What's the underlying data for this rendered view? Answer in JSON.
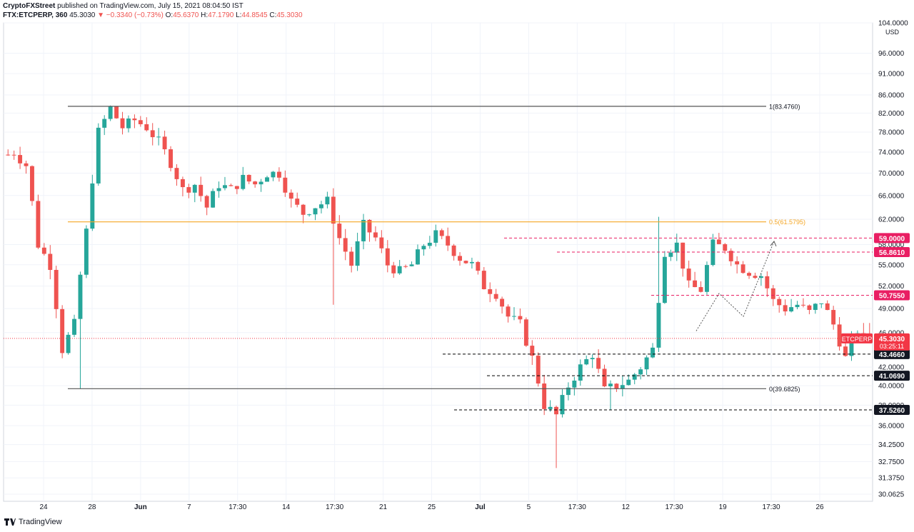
{
  "header": {
    "publisher": "CryptoFXStreet",
    "published_text": "published on TradingView.com, July 15, 2021 08:04:50 IST",
    "symbol": "FTX:ETCPERP, 360",
    "last": "45.3030",
    "change": "▼ −0.3340 (−0.73%)",
    "open_label": "O:",
    "open": "45.6370",
    "high_label": "H:",
    "high": "47.1790",
    "low_label": "L:",
    "low": "44.8545",
    "close_label": "C:",
    "close": "45.3030"
  },
  "footer": {
    "brand": "TradingView"
  },
  "colors": {
    "up": "#26a69a",
    "down": "#ef5350",
    "fib_mid": "#f5a623",
    "fib_line": "#555555",
    "resistance": "#e91e63",
    "support": "#000000",
    "current": "#f23645"
  },
  "chart_data": {
    "type": "candlestick",
    "symbol": "ETCPERP",
    "y_unit_label": "USD",
    "y_scale": "log",
    "ylim": [
      29.5,
      104.0
    ],
    "y_ticks": [
      "104.0000",
      "96.0000",
      "91.0000",
      "86.0000",
      "82.0000",
      "78.0000",
      "74.0000",
      "70.0000",
      "66.0000",
      "62.0000",
      "58.0000",
      "55.0000",
      "52.0000",
      "49.0000",
      "46.0000",
      "42.0000",
      "40.0000",
      "38.0000",
      "36.0000",
      "34.2500",
      "32.7500",
      "31.3750",
      "30.0625"
    ],
    "x_ticks": [
      "24",
      "28",
      "Jun",
      "7",
      "17:30",
      "14",
      "17:30",
      "21",
      "25",
      "Jul",
      "5",
      "17:30",
      "12",
      "17:30",
      "19",
      "17:30",
      "26"
    ],
    "x_ticks_bold": [
      "Jun",
      "Jul"
    ],
    "fibonacci": [
      {
        "label": "1(83.4760)",
        "value": 83.476,
        "color": "#555555"
      },
      {
        "label": "0.5(61.5795)",
        "value": 61.5795,
        "color": "#f5a623"
      },
      {
        "label": "0(39.6825)",
        "value": 39.6825,
        "color": "#555555"
      }
    ],
    "resistance_levels": [
      {
        "label": "59.0000",
        "value": 59.0
      },
      {
        "label": "56.8610",
        "value": 56.861
      },
      {
        "label": "50.7550",
        "value": 50.755
      }
    ],
    "support_levels": [
      {
        "label": "43.4660",
        "value": 43.466
      },
      {
        "label": "41.0690",
        "value": 41.069
      },
      {
        "label": "37.5260",
        "value": 37.526
      }
    ],
    "current_price": {
      "symbol": "ETCPERP",
      "value": 45.303,
      "label": "45.3030",
      "countdown": "03:25:11"
    },
    "projection_path": [
      46.2,
      51.0,
      48.0,
      58.5
    ],
    "anchors": [
      [
        1,
        73.5
      ],
      [
        2,
        74
      ],
      [
        4,
        71.5
      ],
      [
        6,
        58
      ],
      [
        8,
        55
      ],
      [
        10,
        44
      ],
      [
        12,
        47
      ],
      [
        14,
        60
      ],
      [
        16,
        78
      ],
      [
        18,
        83
      ],
      [
        20,
        79
      ],
      [
        22,
        80.5
      ],
      [
        24,
        79
      ],
      [
        26,
        76
      ],
      [
        28,
        72
      ],
      [
        30,
        67
      ],
      [
        32,
        68
      ],
      [
        34,
        64
      ],
      [
        36,
        68
      ],
      [
        38,
        67
      ],
      [
        40,
        69
      ],
      [
        42,
        68
      ],
      [
        44,
        70
      ],
      [
        46,
        70
      ],
      [
        48,
        65
      ],
      [
        50,
        63
      ],
      [
        52,
        64.2
      ],
      [
        54,
        65
      ],
      [
        56,
        59
      ],
      [
        58,
        55
      ],
      [
        60,
        61
      ],
      [
        62,
        59
      ],
      [
        64,
        55
      ],
      [
        66,
        54
      ],
      [
        68,
        55
      ],
      [
        70,
        58
      ],
      [
        72,
        59.5
      ],
      [
        74,
        58
      ],
      [
        76,
        56
      ],
      [
        78,
        55
      ],
      [
        80,
        52
      ],
      [
        82,
        51
      ],
      [
        84,
        48
      ],
      [
        86,
        47
      ],
      [
        88,
        43
      ],
      [
        90,
        38
      ],
      [
        92,
        37
      ],
      [
        94,
        40
      ],
      [
        96,
        42
      ],
      [
        98,
        43.5
      ],
      [
        100,
        39.5
      ],
      [
        102,
        40
      ],
      [
        104,
        40.5
      ],
      [
        106,
        42
      ],
      [
        108,
        44
      ],
      [
        110,
        57
      ],
      [
        112,
        58
      ],
      [
        114,
        52
      ],
      [
        116,
        51.5
      ],
      [
        118,
        58
      ],
      [
        120,
        57.5
      ],
      [
        122,
        55
      ],
      [
        124,
        54
      ],
      [
        126,
        53.5
      ],
      [
        128,
        50
      ],
      [
        130,
        49
      ],
      [
        132,
        49.5
      ],
      [
        134,
        48.5
      ],
      [
        136,
        50
      ],
      [
        138,
        47
      ],
      [
        140,
        43
      ],
      [
        142,
        46.3
      ],
      [
        143,
        45.3
      ]
    ],
    "overrides": [
      {
        "i": 12,
        "l": 39.7
      },
      {
        "i": 18,
        "h": 83.5
      },
      {
        "i": 54,
        "l": 49.5
      },
      {
        "i": 91,
        "l": 32.2
      },
      {
        "i": 100,
        "l": 37.5
      },
      {
        "i": 108,
        "h": 62.4
      },
      {
        "i": 140,
        "l": 42.7
      },
      {
        "i": 142,
        "h": 47.18
      }
    ]
  }
}
